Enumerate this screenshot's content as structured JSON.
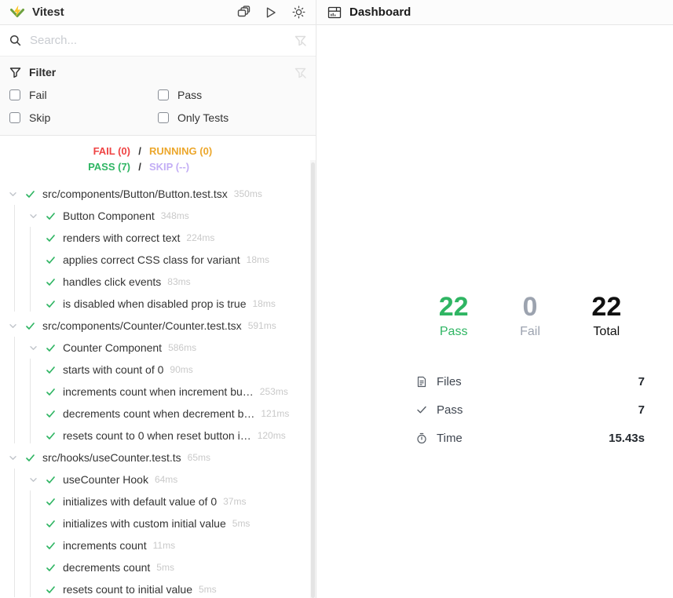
{
  "header": {
    "app_title": "Vitest",
    "dashboard_title": "Dashboard",
    "actions": [
      "stacked-windows",
      "run-all",
      "theme-toggle"
    ]
  },
  "search": {
    "placeholder": "Search..."
  },
  "filter": {
    "title": "Filter",
    "options": [
      {
        "label": "Fail",
        "checked": false
      },
      {
        "label": "Pass",
        "checked": false
      },
      {
        "label": "Skip",
        "checked": false
      },
      {
        "label": "Only Tests",
        "checked": false
      }
    ]
  },
  "summary": {
    "separator": "/",
    "fail": "FAIL (0)",
    "running": "RUNNING (0)",
    "pass": "PASS (7)",
    "skip": "SKIP (--)"
  },
  "colors": {
    "pass_green": "#2fb563",
    "fail_red": "#ef4444",
    "running_amber": "#eca72c",
    "skip_purple": "#c3aef5",
    "fail_gray": "#9ca3af",
    "brand_yellow": "#fcc72b",
    "brand_green": "#6da13f"
  },
  "tree": {
    "files": [
      {
        "label": "src/components/Button/Button.test.tsx",
        "time": "350ms",
        "suites": [
          {
            "label": "Button Component",
            "time": "348ms",
            "tests": [
              {
                "label": "renders with correct text",
                "time": "224ms"
              },
              {
                "label": "applies correct CSS class for variant",
                "time": "18ms"
              },
              {
                "label": "handles click events",
                "time": "83ms"
              },
              {
                "label": "is disabled when disabled prop is true",
                "time": "18ms"
              }
            ]
          }
        ]
      },
      {
        "label": "src/components/Counter/Counter.test.tsx",
        "time": "591ms",
        "suites": [
          {
            "label": "Counter Component",
            "time": "586ms",
            "tests": [
              {
                "label": "starts with count of 0",
                "time": "90ms"
              },
              {
                "label": "increments count when increment bu…",
                "time": "253ms"
              },
              {
                "label": "decrements count when decrement b…",
                "time": "121ms"
              },
              {
                "label": "resets count to 0 when reset button i…",
                "time": "120ms"
              }
            ]
          }
        ]
      },
      {
        "label": "src/hooks/useCounter.test.ts",
        "time": "65ms",
        "suites": [
          {
            "label": "useCounter Hook",
            "time": "64ms",
            "tests": [
              {
                "label": "initializes with default value of 0",
                "time": "37ms"
              },
              {
                "label": "initializes with custom initial value",
                "time": "5ms"
              },
              {
                "label": "increments count",
                "time": "11ms"
              },
              {
                "label": "decrements count",
                "time": "5ms"
              },
              {
                "label": "resets count to initial value",
                "time": "5ms"
              }
            ]
          }
        ]
      }
    ]
  },
  "dashboard": {
    "stats": [
      {
        "value": "22",
        "label": "Pass",
        "kind": "pass"
      },
      {
        "value": "0",
        "label": "Fail",
        "kind": "fail"
      },
      {
        "value": "22",
        "label": "Total",
        "kind": "total"
      }
    ],
    "rows": [
      {
        "icon": "files",
        "label": "Files",
        "value": "7"
      },
      {
        "icon": "check",
        "label": "Pass",
        "value": "7"
      },
      {
        "icon": "timer",
        "label": "Time",
        "value": "15.43s"
      }
    ]
  }
}
